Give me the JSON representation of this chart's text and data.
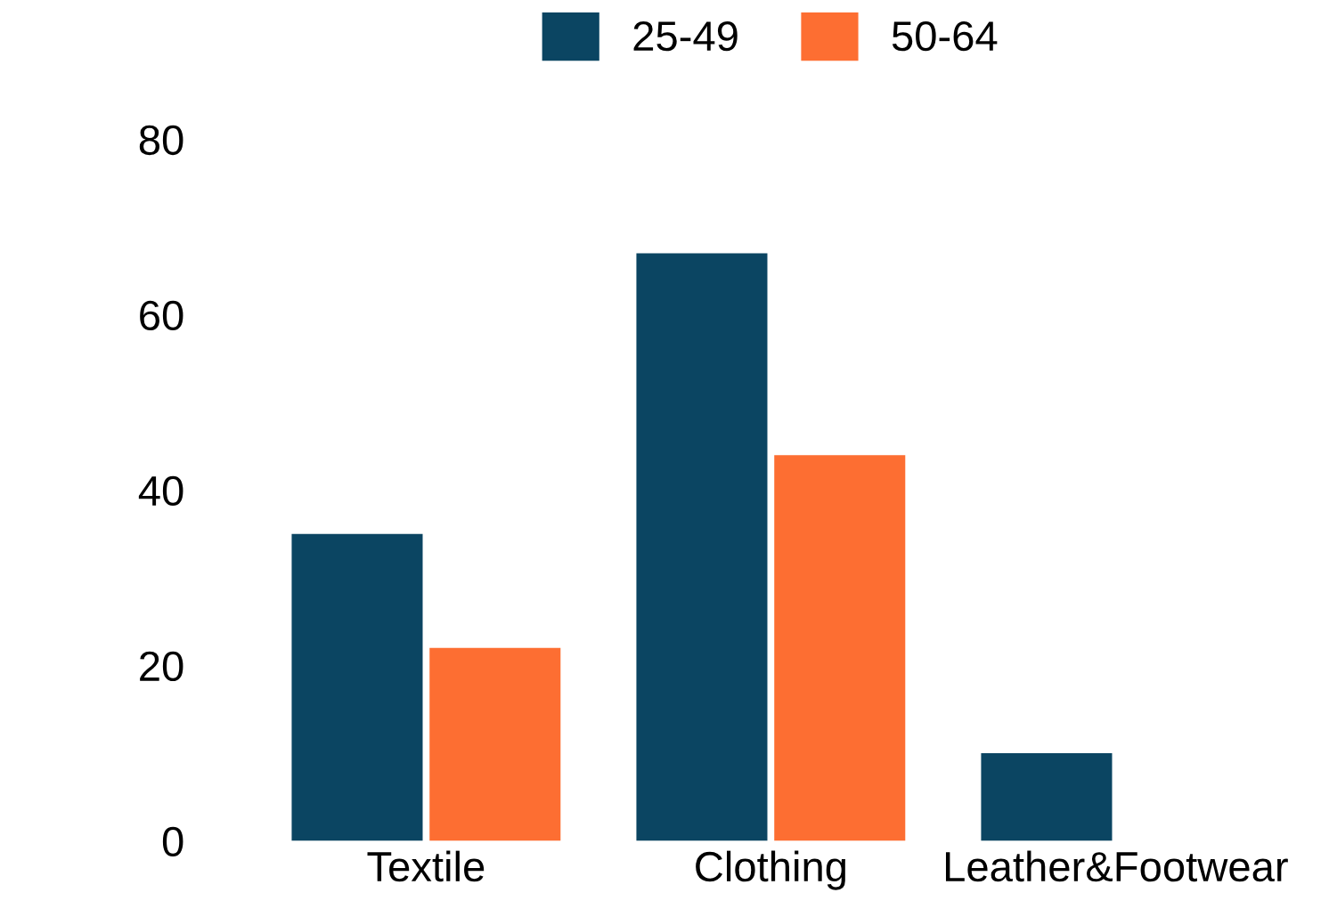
{
  "chart_data": {
    "type": "bar",
    "categories": [
      "Textile",
      "Clothing",
      "Leather&Footwear"
    ],
    "series": [
      {
        "name": "25-49",
        "color": "#0b4562",
        "values": [
          35,
          67,
          10
        ]
      },
      {
        "name": "50-64",
        "color": "#fd6e32",
        "values": [
          22,
          44,
          null
        ]
      }
    ],
    "ylim": [
      0,
      80
    ],
    "yticks": [
      0,
      20,
      40,
      60,
      80
    ],
    "grid": false,
    "legend": "top"
  }
}
